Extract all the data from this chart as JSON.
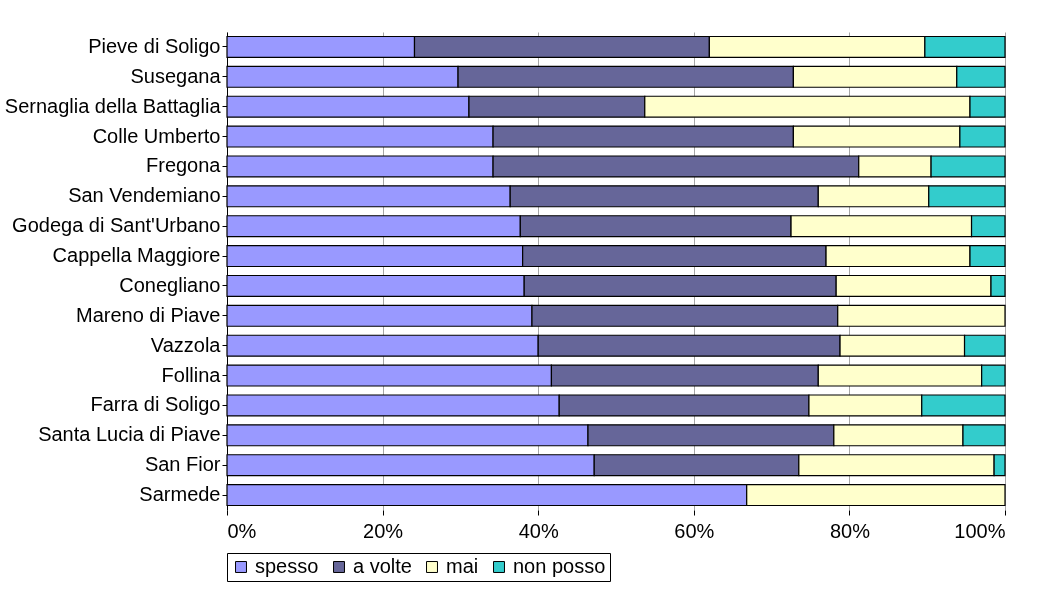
{
  "chart_data": {
    "type": "bar",
    "orientation": "horizontal",
    "stacked": true,
    "categories": [
      "Pieve di Soligo",
      "Susegana",
      "Sernaglia della Battaglia",
      "Colle Umberto",
      "Fregona",
      "San Vendemiano",
      "Godega di Sant'Urbano",
      "Cappella Maggiore",
      "Conegliano",
      "Mareno di Piave",
      "Vazzola",
      "Follina",
      "Farra di Soligo",
      "Santa Lucia di Piave",
      "San Fior",
      "Sarmede"
    ],
    "series": [
      {
        "name": "spesso",
        "color": "#9999ff",
        "values": [
          24.1,
          29.7,
          31.1,
          34.2,
          34.2,
          36.4,
          37.7,
          38.0,
          38.2,
          39.2,
          40.0,
          41.7,
          42.7,
          46.4,
          47.2,
          66.8
        ]
      },
      {
        "name": "a volte",
        "color": "#666699",
        "values": [
          37.9,
          43.1,
          22.6,
          38.6,
          47.0,
          39.6,
          34.8,
          39.0,
          40.1,
          39.3,
          38.8,
          34.3,
          32.1,
          31.6,
          26.3,
          null
        ]
      },
      {
        "name": "mai",
        "color": "#ffffcc",
        "values": [
          27.7,
          21.0,
          41.8,
          21.4,
          9.3,
          14.2,
          23.2,
          18.5,
          19.9,
          21.5,
          16.0,
          21.0,
          14.5,
          16.6,
          25.1,
          33.2
        ]
      },
      {
        "name": "non posso",
        "color": "#33cccc",
        "values": [
          10.3,
          6.2,
          4.5,
          5.8,
          9.5,
          9.8,
          4.3,
          4.5,
          1.8,
          null,
          5.2,
          3.0,
          10.7,
          5.4,
          1.4,
          null
        ]
      }
    ],
    "xlim": [
      0,
      100
    ],
    "xticks": [
      {
        "value": 0,
        "label": "0%"
      },
      {
        "value": 20,
        "label": "20%"
      },
      {
        "value": 40,
        "label": "40%"
      },
      {
        "value": 60,
        "label": "60%"
      },
      {
        "value": 80,
        "label": "80%"
      },
      {
        "value": 100,
        "label": "100%"
      }
    ],
    "grid": "x",
    "legend": "bottom"
  }
}
